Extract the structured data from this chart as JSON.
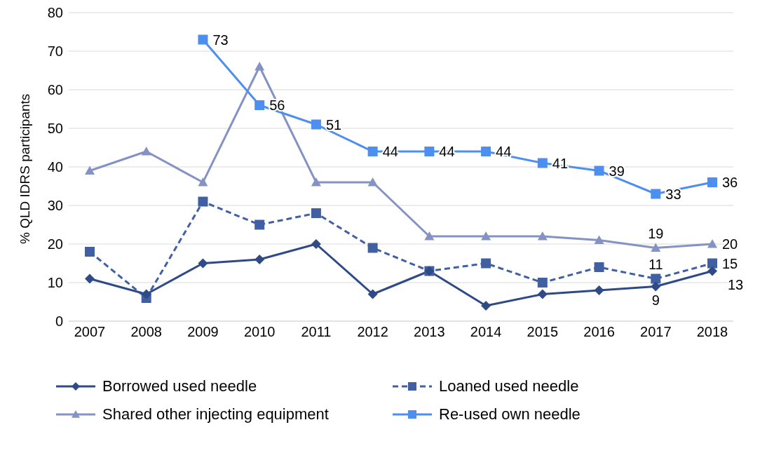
{
  "chart_data": {
    "type": "line",
    "ylabel": "% QLD IDRS participants",
    "categories": [
      "2007",
      "2008",
      "2009",
      "2010",
      "2011",
      "2012",
      "2013",
      "2014",
      "2015",
      "2016",
      "2017",
      "2018"
    ],
    "ylim": [
      0,
      80
    ],
    "yticks": [
      0,
      10,
      20,
      30,
      40,
      50,
      60,
      70,
      80
    ],
    "grid": "y",
    "legend": "bottom",
    "series": [
      {
        "name": "Borrowed used needle",
        "color": "#2f4a87",
        "marker": "diamond",
        "line_style": "solid",
        "values": [
          11,
          7,
          15,
          16,
          20,
          7,
          13,
          4,
          7,
          8,
          9,
          13
        ],
        "value_labels": [
          null,
          null,
          null,
          null,
          null,
          null,
          null,
          null,
          null,
          null,
          "9",
          "13"
        ]
      },
      {
        "name": "Loaned used needle",
        "color": "#4060a3",
        "marker": "square",
        "line_style": "dashed",
        "values": [
          18,
          6,
          31,
          25,
          28,
          19,
          13,
          15,
          10,
          14,
          11,
          15
        ],
        "value_labels": [
          null,
          null,
          null,
          null,
          null,
          null,
          null,
          null,
          null,
          null,
          "11",
          "15"
        ]
      },
      {
        "name": "Shared other injecting equipment",
        "color": "#8492c4",
        "marker": "triangle",
        "line_style": "solid",
        "values": [
          39,
          44,
          36,
          66,
          36,
          36,
          22,
          22,
          22,
          21,
          19,
          20
        ],
        "value_labels": [
          null,
          null,
          null,
          null,
          null,
          null,
          null,
          null,
          null,
          null,
          "19",
          "20"
        ]
      },
      {
        "name": "Re-used own needle",
        "color": "#4d8ff0",
        "marker": "square",
        "line_style": "solid",
        "values": [
          null,
          null,
          73,
          56,
          51,
          44,
          44,
          44,
          41,
          39,
          33,
          36
        ],
        "value_labels": [
          null,
          null,
          "73",
          "56",
          "51",
          "44",
          "44",
          "44",
          "41",
          "39",
          "33",
          "36"
        ]
      }
    ]
  }
}
